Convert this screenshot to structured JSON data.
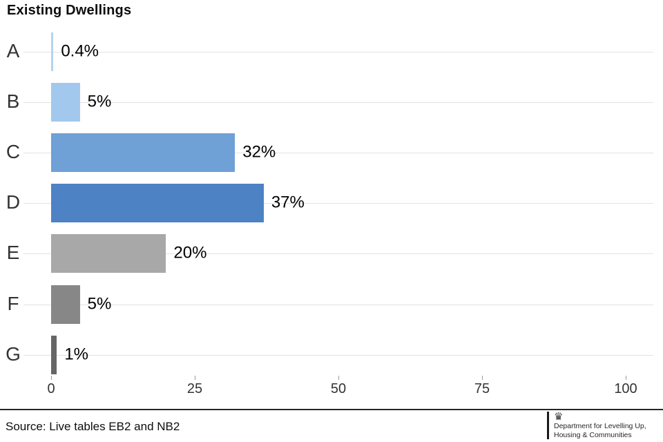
{
  "chart_data": {
    "type": "bar",
    "orientation": "horizontal",
    "title": "Existing Dwellings",
    "categories": [
      "A",
      "B",
      "C",
      "D",
      "E",
      "F",
      "G"
    ],
    "values": [
      0.4,
      5,
      32,
      37,
      20,
      5,
      1
    ],
    "value_labels": [
      "0.4%",
      "5%",
      "32%",
      "37%",
      "20%",
      "5%",
      "1%"
    ],
    "bar_colors": [
      "#b5d3ee",
      "#a2c8ee",
      "#6fa0d6",
      "#4d82c4",
      "#a8a8a8",
      "#878787",
      "#666666"
    ],
    "x_ticks": [
      0,
      25,
      50,
      75,
      100
    ],
    "xlim": [
      0,
      100
    ],
    "xlabel": "",
    "ylabel": "",
    "legend": "none",
    "grid": "horizontal category gridlines",
    "gridline_color": "#e2e2e2"
  },
  "footer": {
    "source": "Source: Live tables EB2 and NB2",
    "logo": {
      "line1": "Department for Levelling Up,",
      "line2": "Housing & Communities"
    }
  }
}
